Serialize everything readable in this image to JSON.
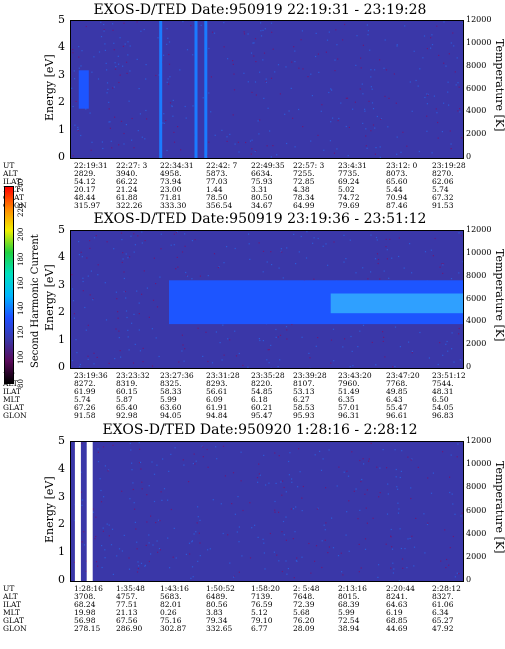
{
  "chart_data": [
    {
      "type": "heatmap",
      "title": "EXOS-D/TED   Date:950919  22:19:31 - 23:19:28",
      "ylabel": "Energy [eV]",
      "ylabel_right": "Temperature [K]",
      "ylim": [
        0,
        5
      ],
      "yticks": [
        "0",
        "1",
        "2",
        "3",
        "4",
        "5"
      ],
      "y2lim": [
        0,
        12000
      ],
      "y2ticks": [
        "0",
        "2000",
        "4000",
        "6000",
        "8000",
        "10000",
        "12000"
      ],
      "ephemeris_labels": [
        "UT",
        "ALT",
        "ILAT",
        "MLT",
        "GLAT",
        "GLON"
      ],
      "ephemeris": [
        [
          "22:19:31",
          "2829.",
          "54.12",
          "20.17",
          "48.44",
          "315.97"
        ],
        [
          "22:27: 3",
          "3940.",
          "66.22",
          "21.24",
          "61.88",
          "322.26"
        ],
        [
          "22:34:31",
          "4958.",
          "73.94",
          "23.00",
          "71.81",
          "333.30"
        ],
        [
          "22:42: 7",
          "5873.",
          "77.03",
          "1.44",
          "78.50",
          "356.54"
        ],
        [
          "22:49:35",
          "6634.",
          "75.93",
          "3.31",
          "80.50",
          "34.67"
        ],
        [
          "22:57: 3",
          "7255.",
          "72.85",
          "4.38",
          "78.34",
          "64.99"
        ],
        [
          "23:4:31",
          "7735.",
          "69.24",
          "5.02",
          "74.72",
          "79.69"
        ],
        [
          "23:12: 0",
          "8073.",
          "65.60",
          "5.44",
          "70.94",
          "87.46"
        ],
        [
          "23:19:28",
          "8270.",
          "62.06",
          "5.74",
          "67.32",
          "91.53"
        ]
      ],
      "features": [
        {
          "kind": "blob",
          "x_frac": 0.02,
          "y_min": 1.8,
          "y_max": 3.2
        },
        {
          "kind": "band",
          "x_frac": 0.225
        },
        {
          "kind": "band",
          "x_frac": 0.315
        },
        {
          "kind": "band",
          "x_frac": 0.34
        }
      ]
    },
    {
      "type": "heatmap",
      "title": "EXOS-D/TED   Date:950919  23:19:36 - 23:51:12",
      "ylabel": "Energy [eV]",
      "ylabel_right": "Temperature [K]",
      "ylim": [
        0,
        5
      ],
      "yticks": [
        "0",
        "1",
        "2",
        "3",
        "4",
        "5"
      ],
      "y2lim": [
        0,
        12000
      ],
      "y2ticks": [
        "0",
        "2000",
        "4000",
        "6000",
        "8000",
        "10000",
        "12000"
      ],
      "ephemeris_labels": [
        "UT",
        "ALT",
        "ILAT",
        "MLT",
        "GLAT",
        "GLON"
      ],
      "ephemeris": [
        [
          "23:19:36",
          "8272.",
          "61.99",
          "5.74",
          "67.26",
          "91.58"
        ],
        [
          "23:23:32",
          "8319.",
          "60.15",
          "5.87",
          "65.40",
          "92.98"
        ],
        [
          "23:27:36",
          "8325.",
          "58.33",
          "5.99",
          "63.60",
          "94.05"
        ],
        [
          "23:31:28",
          "8293.",
          "56.61",
          "6.09",
          "61.91",
          "94.84"
        ],
        [
          "23:35:28",
          "8220.",
          "54.85",
          "6.18",
          "60.21",
          "95.47"
        ],
        [
          "23:39:28",
          "8107.",
          "53.13",
          "6.27",
          "58.53",
          "95.93"
        ],
        [
          "23:43:20",
          "7960.",
          "51.49",
          "6.35",
          "57.01",
          "96.31"
        ],
        [
          "23:47:20",
          "7768.",
          "49.85",
          "6.43",
          "55.47",
          "96.61"
        ],
        [
          "23:51:12",
          "7544.",
          "48.31",
          "6.50",
          "54.05",
          "96.83"
        ]
      ],
      "features": [
        {
          "kind": "blob",
          "x_start": 0.25,
          "x_end": 1.0,
          "y_min": 1.6,
          "y_max": 3.2
        }
      ]
    },
    {
      "type": "heatmap",
      "title": "EXOS-D/TED   Date:950920   1:28:16 - 2:28:12",
      "ylabel": "Energy [eV]",
      "ylabel_right": "Temperature [K]",
      "ylim": [
        0,
        5
      ],
      "yticks": [
        "0",
        "1",
        "2",
        "3",
        "4",
        "5"
      ],
      "y2lim": [
        0,
        12000
      ],
      "y2ticks": [
        "0",
        "2000",
        "4000",
        "6000",
        "8000",
        "10000",
        "12000"
      ],
      "ephemeris_labels": [
        "UT",
        "ALT",
        "ILAT",
        "MLT",
        "GLAT",
        "GLON"
      ],
      "ephemeris": [
        [
          "1:28:16",
          "3708.",
          "68.24",
          "19.98",
          "56.98",
          "278.15"
        ],
        [
          "1:35:48",
          "4757.",
          "77.51",
          "21.13",
          "67.56",
          "286.90"
        ],
        [
          "1:43:16",
          "5683.",
          "82.01",
          "0.26",
          "75.16",
          "302.87"
        ],
        [
          "1:50:52",
          "6489.",
          "80.56",
          "3.83",
          "79.34",
          "332.65"
        ],
        [
          "1:58:20",
          "7139.",
          "76.59",
          "5.12",
          "79.10",
          "6.77"
        ],
        [
          "2: 5:48",
          "7648.",
          "72.39",
          "5.68",
          "76.20",
          "28.09"
        ],
        [
          "2:13:16",
          "8015.",
          "68.39",
          "5.99",
          "72.54",
          "38.94"
        ],
        [
          "2:20:44",
          "8241.",
          "64.63",
          "6.19",
          "68.85",
          "44.69"
        ],
        [
          "2:28:12",
          "8327.",
          "61.06",
          "6.34",
          "65.27",
          "47.92"
        ]
      ],
      "features": [
        {
          "kind": "gap",
          "x_frac": 0.01
        },
        {
          "kind": "gap",
          "x_frac": 0.04
        }
      ]
    }
  ],
  "colorbar": {
    "label": "Second Harmonic Current",
    "ticks": [
      "80",
      "100",
      "120",
      "140",
      "160",
      "180",
      "200",
      "220",
      "240"
    ],
    "colors": [
      "#000000",
      "#5a0a5a",
      "#3a37a8",
      "#1f4fff",
      "#00b5ff",
      "#00e0c0",
      "#20d040",
      "#f0f000",
      "#ff8800",
      "#ff0000"
    ]
  }
}
